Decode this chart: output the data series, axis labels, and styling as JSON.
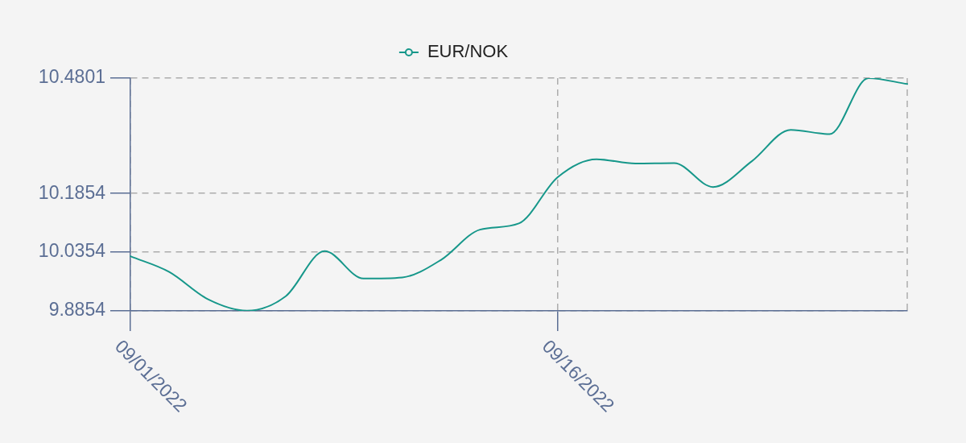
{
  "chart_data": {
    "type": "line",
    "categories": [
      "09/01/2022",
      null,
      null,
      null,
      null,
      null,
      null,
      null,
      null,
      null,
      null,
      "09/16/2022",
      null,
      null,
      null,
      null,
      null,
      null,
      null,
      null,
      null
    ],
    "series": [
      {
        "name": "EUR/NOK",
        "color": "#16978a",
        "values": [
          10.025,
          9.985,
          9.915,
          9.886,
          9.923,
          10.038,
          9.968,
          9.971,
          10.016,
          10.093,
          10.109,
          10.227,
          10.273,
          10.262,
          10.263,
          10.202,
          10.268,
          10.348,
          10.337,
          10.48,
          10.465
        ]
      }
    ],
    "ylim": [
      9.8854,
      10.4801
    ],
    "yticks": [
      9.8854,
      10.0354,
      10.1854,
      10.4801
    ],
    "grid": true,
    "legend": "top",
    "marker": "none"
  }
}
